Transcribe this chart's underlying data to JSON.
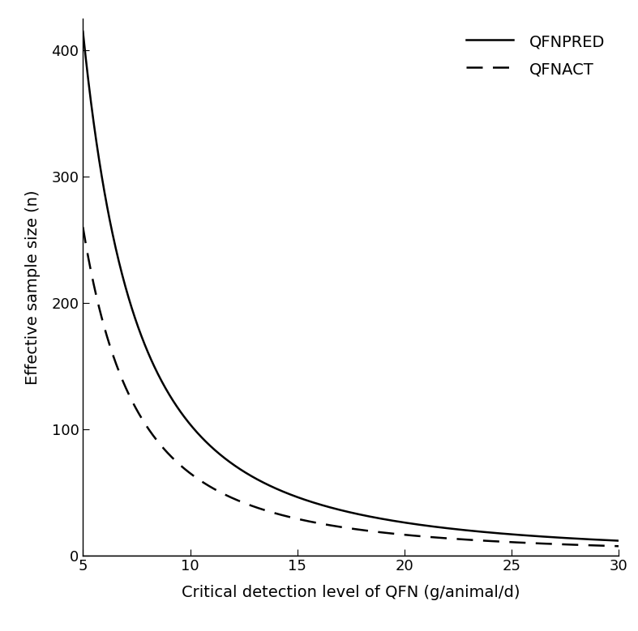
{
  "xlabel": "Critical detection level of QFN (g/animal/d)",
  "ylabel": "Effective sample size (n)",
  "xlim": [
    5,
    30
  ],
  "ylim": [
    0,
    425
  ],
  "xticks": [
    5,
    10,
    15,
    20,
    25,
    30
  ],
  "yticks": [
    0,
    100,
    200,
    300,
    400
  ],
  "legend_labels": [
    "QFNPRED",
    "QFNACT"
  ],
  "background_color": "#ffffff",
  "line_color": "#000000",
  "qfnpred_coeff": 10375,
  "qfnact_coeff": 6500,
  "x_start": 5,
  "x_end": 30,
  "n_points": 1000,
  "label_fontsize": 14,
  "tick_fontsize": 13,
  "legend_fontsize": 14,
  "linewidth": 1.8
}
